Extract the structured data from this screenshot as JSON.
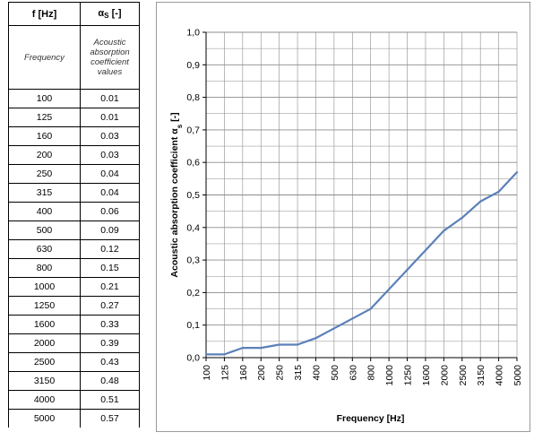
{
  "table": {
    "col1_header": "f [Hz]",
    "col2_header_symbol": "α",
    "col2_header_sub": "S",
    "col2_header_unit": "[-]",
    "col1_desc": "Frequency",
    "col2_desc_lines": [
      "Acoustic",
      "absorption",
      "coefficient",
      "values"
    ],
    "rows": [
      [
        "100",
        "0.01"
      ],
      [
        "125",
        "0.01"
      ],
      [
        "160",
        "0.03"
      ],
      [
        "200",
        "0.03"
      ],
      [
        "250",
        "0.04"
      ],
      [
        "315",
        "0.04"
      ],
      [
        "400",
        "0.06"
      ],
      [
        "500",
        "0.09"
      ],
      [
        "630",
        "0.12"
      ],
      [
        "800",
        "0.15"
      ],
      [
        "1000",
        "0.21"
      ],
      [
        "1250",
        "0.27"
      ],
      [
        "1600",
        "0.33"
      ],
      [
        "2000",
        "0.39"
      ],
      [
        "2500",
        "0.43"
      ],
      [
        "3150",
        "0.48"
      ],
      [
        "4000",
        "0.51"
      ],
      [
        "5000",
        "0.57"
      ]
    ]
  },
  "chart_data": {
    "type": "line",
    "x": [
      "100",
      "125",
      "160",
      "200",
      "250",
      "315",
      "400",
      "500",
      "630",
      "800",
      "1000",
      "1250",
      "1600",
      "2000",
      "2500",
      "3150",
      "4000",
      "5000"
    ],
    "series": [
      {
        "values": [
          0.01,
          0.01,
          0.03,
          0.03,
          0.04,
          0.04,
          0.06,
          0.09,
          0.12,
          0.15,
          0.21,
          0.27,
          0.33,
          0.39,
          0.43,
          0.48,
          0.51,
          0.57
        ]
      }
    ],
    "ylim": [
      0,
      1.0
    ],
    "yticks": [
      "0,0",
      "0,1",
      "0,2",
      "0,3",
      "0,4",
      "0,5",
      "0,6",
      "0,7",
      "0,8",
      "0,9",
      "1,0"
    ],
    "xlabel": "Frequency [Hz]",
    "ylabel_main": "Acoustic absorption coefficient α",
    "ylabel_sub": "s",
    "ylabel_unit": " [-]",
    "grid": true,
    "line_color": "#5b80b9",
    "grid_color": "#8c8c8c"
  }
}
